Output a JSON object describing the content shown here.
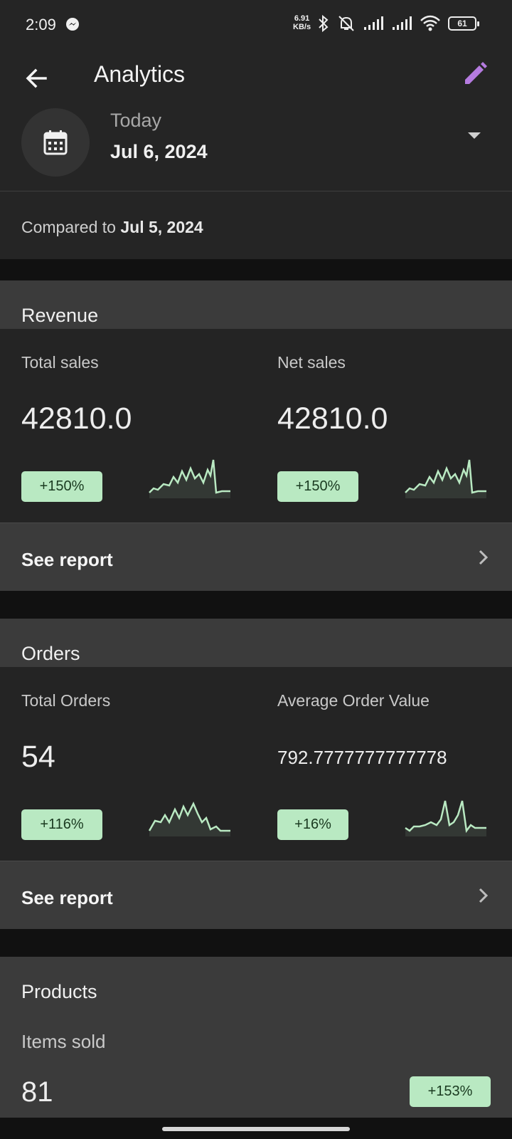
{
  "status_bar": {
    "time": "2:09",
    "net_speed_value": "6.91",
    "net_speed_unit": "KB/s",
    "battery": "61",
    "icons": [
      "messenger-icon",
      "bluetooth-icon",
      "mute-icon",
      "signal-icon",
      "signal-icon",
      "wifi-icon",
      "battery-icon"
    ]
  },
  "header": {
    "title": "Analytics",
    "back_icon": "arrow-left-icon",
    "edit_icon": "pencil-icon"
  },
  "date_picker": {
    "label": "Today",
    "value": "Jul 6, 2024"
  },
  "comparison": {
    "prefix": "Compared to ",
    "date": "Jul 5, 2024"
  },
  "revenue": {
    "title": "Revenue",
    "metrics": [
      {
        "label": "Total sales",
        "value": "42810.0",
        "change": "+150%"
      },
      {
        "label": "Net sales",
        "value": "42810.0",
        "change": "+150%"
      }
    ],
    "see_report": "See report"
  },
  "orders": {
    "title": "Orders",
    "metrics": [
      {
        "label": "Total Orders",
        "value": "54",
        "change": "+116%"
      },
      {
        "label": "Average Order Value",
        "value": "792.7777777777778",
        "change": "+16%"
      }
    ],
    "see_report": "See report"
  },
  "products": {
    "title": "Products",
    "label": "Items sold",
    "value": "81",
    "change": "+153%"
  },
  "colors": {
    "accent": "#b57be0",
    "badge_bg": "#b9e9c2",
    "spark_line": "#b9e9c2"
  }
}
